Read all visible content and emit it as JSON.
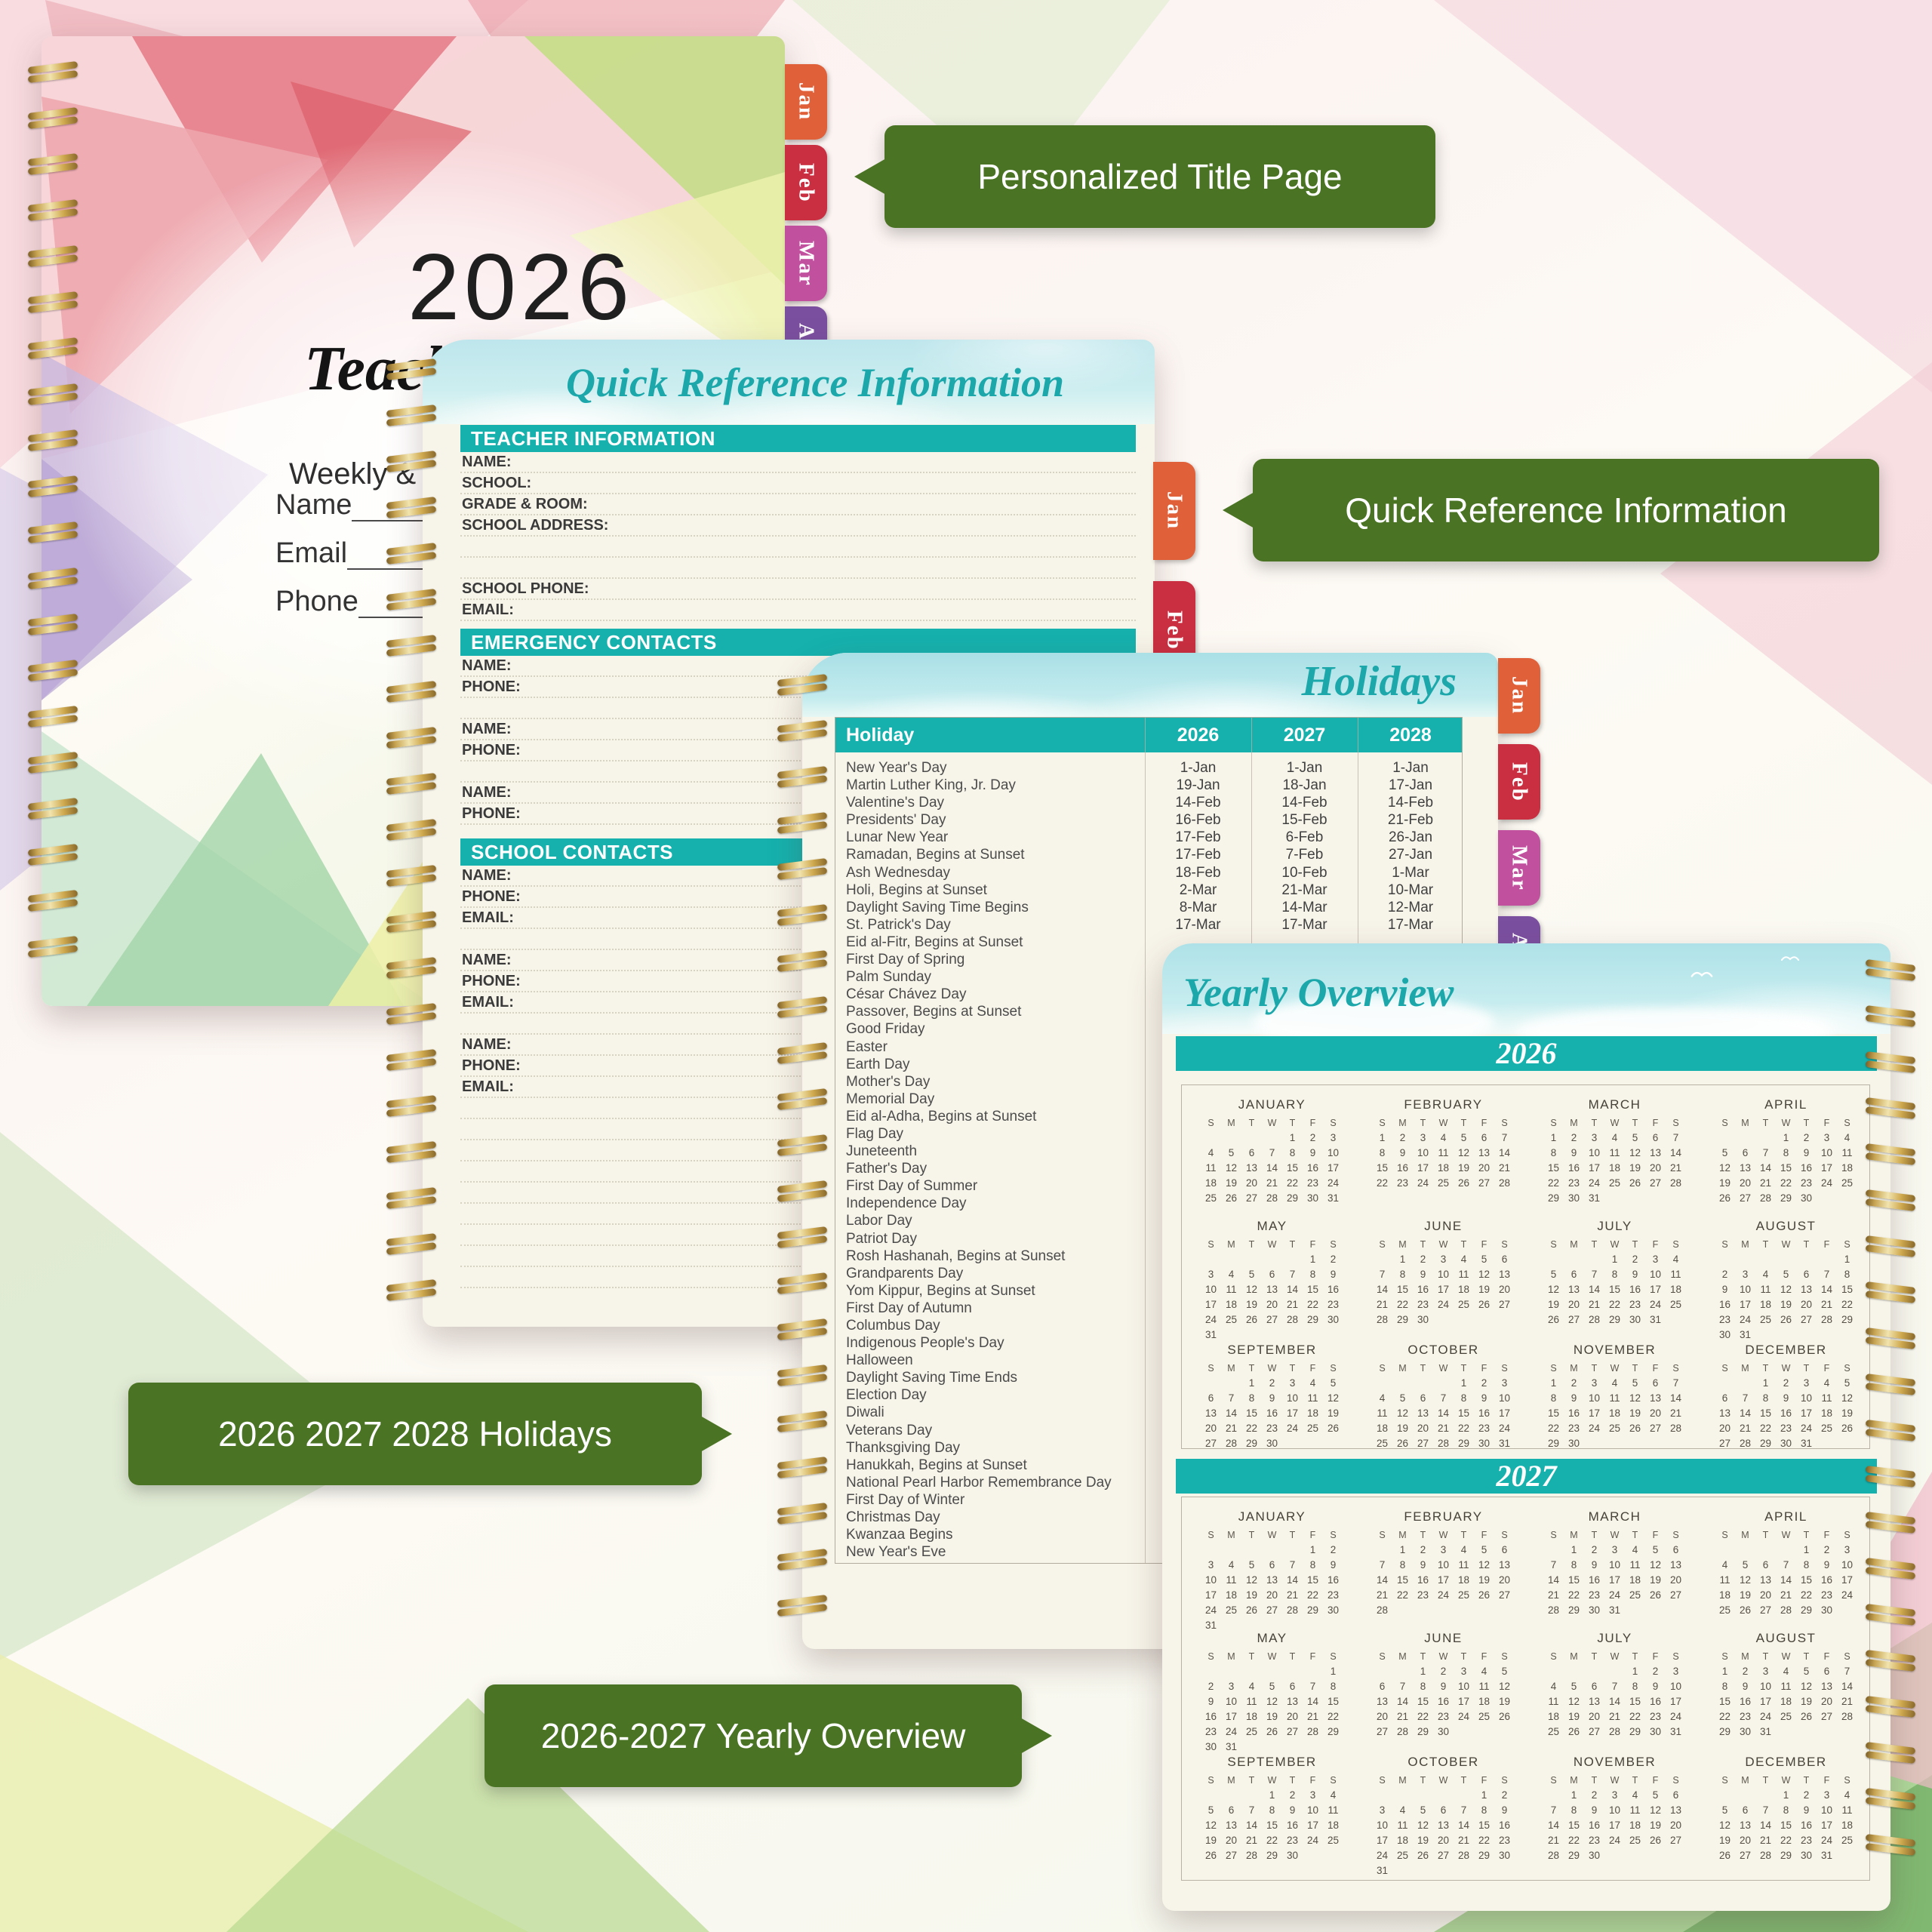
{
  "callouts": [
    {
      "text": "Personalized Title Page"
    },
    {
      "text": "Quick Reference Information"
    },
    {
      "text": "2026 2027 2028 Holidays"
    },
    {
      "text": "2026-2027 Yearly Overview"
    }
  ],
  "cover": {
    "year": "2026",
    "title_script": "Teacher",
    "subtitle": "Weekly & Month",
    "fields": [
      "Name",
      "Email",
      "Phone"
    ],
    "tabs": [
      "Jan",
      "Feb",
      "Mar",
      "Apr"
    ]
  },
  "qri": {
    "header": "Quick Reference Information",
    "tabs": [
      "Jan",
      "Feb"
    ],
    "sections": [
      {
        "title": "TEACHER INFORMATION",
        "rows": [
          "NAME:",
          "SCHOOL:",
          "GRADE & ROOM:",
          "SCHOOL ADDRESS:",
          "",
          "",
          "SCHOOL PHONE:",
          "EMAIL:"
        ]
      },
      {
        "title": "EMERGENCY CONTACTS",
        "rows": [
          "NAME:",
          "PHONE:",
          "",
          "NAME:",
          "PHONE:",
          "",
          "NAME:",
          "PHONE:"
        ]
      },
      {
        "title": "SCHOOL CONTACTS",
        "rows": [
          "NAME:",
          "PHONE:",
          "EMAIL:",
          "",
          "NAME:",
          "PHONE:",
          "EMAIL:",
          "",
          "NAME:",
          "PHONE:",
          "EMAIL:",
          "",
          "",
          "",
          "",
          "",
          "",
          "",
          "",
          ""
        ]
      }
    ]
  },
  "holidays": {
    "header": "Holidays",
    "tabs": [
      "Jan",
      "Feb",
      "Mar",
      "Apr"
    ],
    "columns": [
      "Holiday",
      "2026",
      "2027",
      "2028"
    ],
    "rows": [
      [
        "New Year's Day",
        "1-Jan",
        "1-Jan",
        "1-Jan"
      ],
      [
        "Martin Luther King, Jr. Day",
        "19-Jan",
        "18-Jan",
        "17-Jan"
      ],
      [
        "Valentine's Day",
        "14-Feb",
        "14-Feb",
        "14-Feb"
      ],
      [
        "Presidents' Day",
        "16-Feb",
        "15-Feb",
        "21-Feb"
      ],
      [
        "Lunar New Year",
        "17-Feb",
        "6-Feb",
        "26-Jan"
      ],
      [
        "Ramadan, Begins at Sunset",
        "17-Feb",
        "7-Feb",
        "27-Jan"
      ],
      [
        "Ash Wednesday",
        "18-Feb",
        "10-Feb",
        "1-Mar"
      ],
      [
        "Holi, Begins at Sunset",
        "2-Mar",
        "21-Mar",
        "10-Mar"
      ],
      [
        "Daylight Saving Time Begins",
        "8-Mar",
        "14-Mar",
        "12-Mar"
      ],
      [
        "St. Patrick's Day",
        "17-Mar",
        "17-Mar",
        "17-Mar"
      ],
      [
        "Eid al-Fitr, Begins at Sunset",
        "",
        "",
        ""
      ],
      [
        "First Day of Spring",
        "",
        "",
        ""
      ],
      [
        "Palm Sunday",
        "",
        "",
        ""
      ],
      [
        "César Chávez Day",
        "",
        "",
        ""
      ],
      [
        "Passover, Begins at Sunset",
        "",
        "",
        ""
      ],
      [
        "Good Friday",
        "",
        "",
        ""
      ],
      [
        "Easter",
        "",
        "",
        ""
      ],
      [
        "Earth Day",
        "",
        "",
        ""
      ],
      [
        "Mother's Day",
        "",
        "",
        ""
      ],
      [
        "Memorial Day",
        "",
        "",
        ""
      ],
      [
        "Eid al-Adha, Begins at Sunset",
        "",
        "",
        ""
      ],
      [
        "Flag Day",
        "",
        "",
        ""
      ],
      [
        "Juneteenth",
        "",
        "",
        ""
      ],
      [
        "Father's Day",
        "",
        "",
        ""
      ],
      [
        "First Day of Summer",
        "",
        "",
        ""
      ],
      [
        "Independence Day",
        "",
        "",
        ""
      ],
      [
        "Labor Day",
        "",
        "",
        ""
      ],
      [
        "Patriot Day",
        "",
        "",
        ""
      ],
      [
        "Rosh Hashanah, Begins at Sunset",
        "",
        "",
        ""
      ],
      [
        "Grandparents Day",
        "",
        "",
        ""
      ],
      [
        "Yom Kippur, Begins at Sunset",
        "",
        "",
        ""
      ],
      [
        "First Day of Autumn",
        "",
        "",
        ""
      ],
      [
        "Columbus Day",
        "",
        "",
        ""
      ],
      [
        "Indigenous People's Day",
        "",
        "",
        ""
      ],
      [
        "Halloween",
        "",
        "",
        ""
      ],
      [
        "Daylight Saving Time Ends",
        "",
        "",
        ""
      ],
      [
        "Election Day",
        "",
        "",
        ""
      ],
      [
        "Diwali",
        "",
        "",
        ""
      ],
      [
        "Veterans Day",
        "",
        "",
        ""
      ],
      [
        "Thanksgiving Day",
        "",
        "",
        ""
      ],
      [
        "Hanukkah, Begins at Sunset",
        "",
        "",
        ""
      ],
      [
        "National Pearl Harbor Remembrance Day",
        "",
        "",
        ""
      ],
      [
        "First Day of Winter",
        "",
        "",
        ""
      ],
      [
        "Christmas Day",
        "",
        "",
        ""
      ],
      [
        "Kwanzaa Begins",
        "",
        "",
        ""
      ],
      [
        "New Year's Eve",
        "",
        "",
        ""
      ]
    ]
  },
  "yearly": {
    "header": "Yearly Overview",
    "day_letters": [
      "S",
      "M",
      "T",
      "W",
      "T",
      "F",
      "S"
    ],
    "years": [
      {
        "year": "2026",
        "months": [
          {
            "name": "JANUARY",
            "start": 4,
            "days": 31
          },
          {
            "name": "FEBRUARY",
            "start": 0,
            "days": 28
          },
          {
            "name": "MARCH",
            "start": 0,
            "days": 31
          },
          {
            "name": "APRIL",
            "start": 3,
            "days": 30
          },
          {
            "name": "MAY",
            "start": 5,
            "days": 31
          },
          {
            "name": "JUNE",
            "start": 1,
            "days": 30
          },
          {
            "name": "JULY",
            "start": 3,
            "days": 31
          },
          {
            "name": "AUGUST",
            "start": 6,
            "days": 31
          },
          {
            "name": "SEPTEMBER",
            "start": 2,
            "days": 30
          },
          {
            "name": "OCTOBER",
            "start": 4,
            "days": 31
          },
          {
            "name": "NOVEMBER",
            "start": 0,
            "days": 30
          },
          {
            "name": "DECEMBER",
            "start": 2,
            "days": 31
          }
        ]
      },
      {
        "year": "2027",
        "months": [
          {
            "name": "JANUARY",
            "start": 5,
            "days": 31
          },
          {
            "name": "FEBRUARY",
            "start": 1,
            "days": 28
          },
          {
            "name": "MARCH",
            "start": 1,
            "days": 31
          },
          {
            "name": "APRIL",
            "start": 4,
            "days": 30
          },
          {
            "name": "MAY",
            "start": 6,
            "days": 31
          },
          {
            "name": "JUNE",
            "start": 2,
            "days": 30
          },
          {
            "name": "JULY",
            "start": 4,
            "days": 31
          },
          {
            "name": "AUGUST",
            "start": 0,
            "days": 31
          },
          {
            "name": "SEPTEMBER",
            "start": 3,
            "days": 30
          },
          {
            "name": "OCTOBER",
            "start": 5,
            "days": 31
          },
          {
            "name": "NOVEMBER",
            "start": 1,
            "days": 30
          },
          {
            "name": "DECEMBER",
            "start": 3,
            "days": 31
          }
        ]
      }
    ]
  }
}
